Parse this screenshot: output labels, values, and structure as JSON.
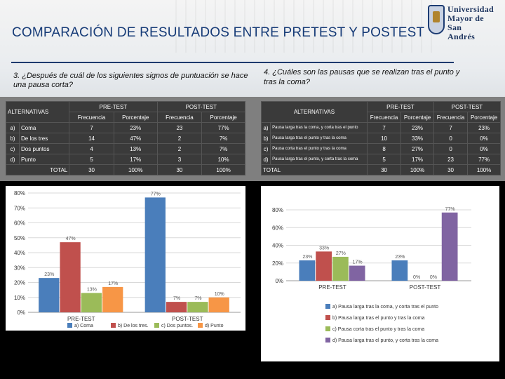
{
  "slide": {
    "title": "COMPARACIÓN DE RESULTADOS ENTRE PRETEST Y POSTEST",
    "logo_text": [
      "Universidad",
      "Mayor de",
      "San",
      "Andrés"
    ]
  },
  "q3": {
    "question": "3. ¿Después de cuál de los siguientes signos de puntuación se hace una pausa corta?",
    "headers": {
      "alternativas": "ALTERNATIVAS",
      "pre": "PRE-TEST",
      "post": "POST-TEST",
      "freq": "Frecuencia",
      "pct": "Porcentaje"
    },
    "rows": [
      {
        "letter": "a)",
        "label": "Coma",
        "pre_f": "7",
        "pre_p": "23%",
        "post_f": "23",
        "post_p": "77%"
      },
      {
        "letter": "b)",
        "label": "De los tres",
        "pre_f": "14",
        "pre_p": "47%",
        "post_f": "2",
        "post_p": "7%"
      },
      {
        "letter": "c)",
        "label": "Dos puntos",
        "pre_f": "4",
        "pre_p": "13%",
        "post_f": "2",
        "post_p": "7%"
      },
      {
        "letter": "d)",
        "label": "Punto",
        "pre_f": "5",
        "pre_p": "17%",
        "post_f": "3",
        "post_p": "10%"
      }
    ],
    "total": {
      "label": "TOTAL",
      "pre_f": "30",
      "pre_p": "100%",
      "post_f": "30",
      "post_p": "100%"
    }
  },
  "q4": {
    "question": "4. ¿Cuáles son las pausas que se realizan tras el punto y tras la coma?",
    "headers": {
      "alternativas": "ALTERNATIVAS",
      "pre": "PRE-TEST",
      "post": "POST-TEST",
      "freq": "Frecuencia",
      "pct": "Porcentaje"
    },
    "rows": [
      {
        "letter": "a)",
        "label": "Pausa larga tras la coma, y corta tras el punto",
        "pre_f": "7",
        "pre_p": "23%",
        "post_f": "7",
        "post_p": "23%"
      },
      {
        "letter": "b)",
        "label": "Pausa larga tras el punto y tras la coma",
        "pre_f": "10",
        "pre_p": "33%",
        "post_f": "0",
        "post_p": "0%"
      },
      {
        "letter": "c)",
        "label": "Pausa corta tras el punto y tras la coma",
        "pre_f": "8",
        "pre_p": "27%",
        "post_f": "0",
        "post_p": "0%"
      },
      {
        "letter": "d)",
        "label": "Pausa larga tras el punto, y corta tras la coma",
        "pre_f": "5",
        "pre_p": "17%",
        "post_f": "23",
        "post_p": "77%"
      }
    ],
    "total": {
      "label": "TOTAL",
      "pre_f": "30",
      "pre_p": "100%",
      "post_f": "30",
      "post_p": "100%"
    }
  },
  "chart_data": [
    {
      "type": "bar",
      "categories": [
        "PRE-TEST",
        "POST-TEST"
      ],
      "series": [
        {
          "name": "a) Coma",
          "values": [
            23,
            77
          ],
          "color": "#4a7ebb"
        },
        {
          "name": "b) De los tres.",
          "values": [
            47,
            7
          ],
          "color": "#c0504d"
        },
        {
          "name": "c) Dos puntos.",
          "values": [
            13,
            7
          ],
          "color": "#9bbb59"
        },
        {
          "name": "d) Punto",
          "values": [
            17,
            10
          ],
          "color": "#f79646"
        }
      ],
      "labels": [
        [
          "23%",
          "77%"
        ],
        [
          "47%",
          "7%"
        ],
        [
          "13%",
          "7%"
        ],
        [
          "17%",
          "10%"
        ]
      ],
      "yticks": [
        "0%",
        "10%",
        "20%",
        "30%",
        "40%",
        "50%",
        "60%",
        "70%",
        "80%"
      ],
      "ylim": [
        0,
        80
      ],
      "legend_position": "bottom"
    },
    {
      "type": "bar",
      "categories": [
        "PRE-TEST",
        "POST-TEST"
      ],
      "series": [
        {
          "name": "a) Pausa larga tras la coma, y corta tras el punto",
          "values": [
            23,
            23
          ],
          "color": "#4a7ebb"
        },
        {
          "name": "b) Pausa larga tras el punto y tras la coma",
          "values": [
            33,
            0
          ],
          "color": "#c0504d"
        },
        {
          "name": "c) Pausa corta tras el punto y tras la coma",
          "values": [
            27,
            0
          ],
          "color": "#9bbb59"
        },
        {
          "name": "d) Pausa larga tras el punto, y corta tras la coma",
          "values": [
            17,
            77
          ],
          "color": "#8064a2"
        }
      ],
      "labels": [
        [
          "23%",
          "23%"
        ],
        [
          "33%",
          "0%"
        ],
        [
          "27%",
          "0%"
        ],
        [
          "17%",
          "77%"
        ]
      ],
      "yticks": [
        "0%",
        "20%",
        "40%",
        "60%",
        "80%"
      ],
      "ylim": [
        0,
        80
      ],
      "legend_position": "bottom"
    }
  ]
}
